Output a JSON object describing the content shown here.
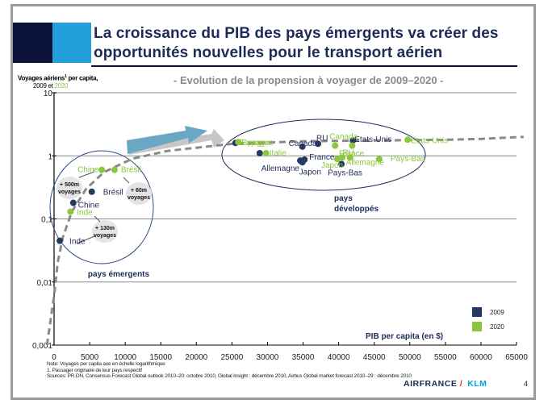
{
  "slide": {
    "title": "La croissance du PIB des pays émergents va créer des opportunités nouvelles pour le transport aérien",
    "title_line1": "La croissance du PIB des pays émergents va créer des",
    "title_line2": "opportunités nouvelles pour le transport aérien",
    "subtitle": "- Evolution de la propension à voyager de 2009–2020 -",
    "page_number": "4",
    "notes": [
      "Note: Voyages per capita axe en échelle logarithmique",
      "1. Passager originaire de leur pays respectif",
      "Sources: PR.DN, Consensus Forecast Global outlook 2010–20: octobre 2010, Global Insight : décembre 2010, Airbus Global market forecast 2010–29 : décembre 2010"
    ],
    "logo": {
      "airfrance": "AIRFRANCE",
      "slash": "/",
      "klm": "KLM"
    },
    "colors": {
      "dark_navy": "#0b1338",
      "light_blue": "#239fdc",
      "series_2009": "#243a63",
      "series_2020": "#8cc63f",
      "arrow": "#6aa7c4"
    }
  },
  "chart_data": {
    "type": "scatter",
    "title": "Evolution de la propension à voyager de 2009–2020",
    "xlabel": "PIB per capita (en $)",
    "ylabel": "Voyages aériens¹ per capita,",
    "ylabel_sup": "1",
    "ylabel_main": "Voyages aériens",
    "ylabel_rest": " per capita,",
    "ylabel_years_prefix": "2009 et ",
    "ylabel_years_green": "2020",
    "xlim": [
      0,
      65000
    ],
    "ylim": [
      0.001,
      10
    ],
    "yscale": "log",
    "x_ticks": [
      0,
      5000,
      10000,
      15000,
      20000,
      25000,
      30000,
      35000,
      40000,
      45000,
      50000,
      55000,
      60000,
      65000
    ],
    "x_tick_labels": [
      "0",
      "5000",
      "10000",
      "15000",
      "20000",
      "25000",
      "30000",
      "35000",
      "40000",
      "45000",
      "50000",
      "55000",
      "60000",
      "65000"
    ],
    "y_ticks": [
      0.001,
      0.01,
      0.1,
      1,
      10
    ],
    "y_tick_labels": [
      "0,001",
      "0,01",
      "0,1",
      "1",
      "10"
    ],
    "grid": "horizontal",
    "legend": {
      "placement": "bottom-right",
      "entries": [
        {
          "name": "2009",
          "color": "#243a63"
        },
        {
          "name": "2020",
          "color": "#8cc63f"
        }
      ]
    },
    "series": [
      {
        "name": "2009",
        "color": "#243a63",
        "points": [
          {
            "label": "Inde",
            "x": 800,
            "y": 0.045
          },
          {
            "label": "Chine",
            "x": 2700,
            "y": 0.18
          },
          {
            "label": "Brésil",
            "x": 5300,
            "y": 0.27
          },
          {
            "label": "Espagne",
            "x": 25500,
            "y": 1.6
          },
          {
            "label": "Italie",
            "x": 28900,
            "y": 1.1
          },
          {
            "label": "Allemagne",
            "x": 34600,
            "y": 0.84
          },
          {
            "label": "Japon",
            "x": 34900,
            "y": 0.79
          },
          {
            "label": "France",
            "x": 35200,
            "y": 0.87
          },
          {
            "label": "Canada",
            "x": 34900,
            "y": 1.4
          },
          {
            "label": "RU",
            "x": 37100,
            "y": 1.55
          },
          {
            "label": "Pays-Bas",
            "x": 40400,
            "y": 0.74
          },
          {
            "label": "Etats-Unis",
            "x": 42000,
            "y": 1.75
          }
        ]
      },
      {
        "name": "2020",
        "color": "#8cc63f",
        "points": [
          {
            "label": "Inde",
            "x": 2300,
            "y": 0.13
          },
          {
            "label": "Chine",
            "x": 6700,
            "y": 0.6
          },
          {
            "label": "Brésil",
            "x": 8500,
            "y": 0.6
          },
          {
            "label": "Espagne",
            "x": 25900,
            "y": 1.65
          },
          {
            "label": "Italie",
            "x": 29800,
            "y": 1.1
          },
          {
            "label": "Japon",
            "x": 39800,
            "y": 0.89
          },
          {
            "label": "France",
            "x": 40500,
            "y": 0.94
          },
          {
            "label": "Canada",
            "x": 39500,
            "y": 1.45
          },
          {
            "label": "Allemagne",
            "x": 41600,
            "y": 0.94
          },
          {
            "label": "RU",
            "x": 41900,
            "y": 1.45
          },
          {
            "label": "Pays-Bas",
            "x": 45700,
            "y": 0.89
          },
          {
            "label": "Etats-Unis",
            "x": 49700,
            "y": 1.8
          }
        ]
      }
    ],
    "trend_curve": [
      {
        "x": -1000,
        "y": 0.001
      },
      {
        "x": 0,
        "y": 0.006
      },
      {
        "x": 500,
        "y": 0.02
      },
      {
        "x": 1200,
        "y": 0.05
      },
      {
        "x": 2500,
        "y": 0.13
      },
      {
        "x": 4500,
        "y": 0.3
      },
      {
        "x": 7000,
        "y": 0.55
      },
      {
        "x": 11000,
        "y": 0.9
      },
      {
        "x": 16000,
        "y": 1.2
      },
      {
        "x": 25000,
        "y": 1.55
      },
      {
        "x": 35000,
        "y": 1.7
      },
      {
        "x": 45000,
        "y": 1.75
      },
      {
        "x": 55000,
        "y": 1.8
      },
      {
        "x": 60000,
        "y": 1.85
      },
      {
        "x": 66000,
        "y": 2.0
      }
    ],
    "annotations": [
      {
        "text_line1": "+ 500m",
        "text_line2": "voyages",
        "refers_to": "Chine"
      },
      {
        "text_line1": "+ 60m",
        "text_line2": "voyages",
        "refers_to": "Brésil"
      },
      {
        "text_line1": "+ 130m",
        "text_line2": "voyages",
        "refers_to": "Inde"
      }
    ],
    "group_labels": [
      {
        "text": "pays émergents"
      },
      {
        "text_line1": "pays",
        "text_line2": "développés"
      }
    ]
  }
}
